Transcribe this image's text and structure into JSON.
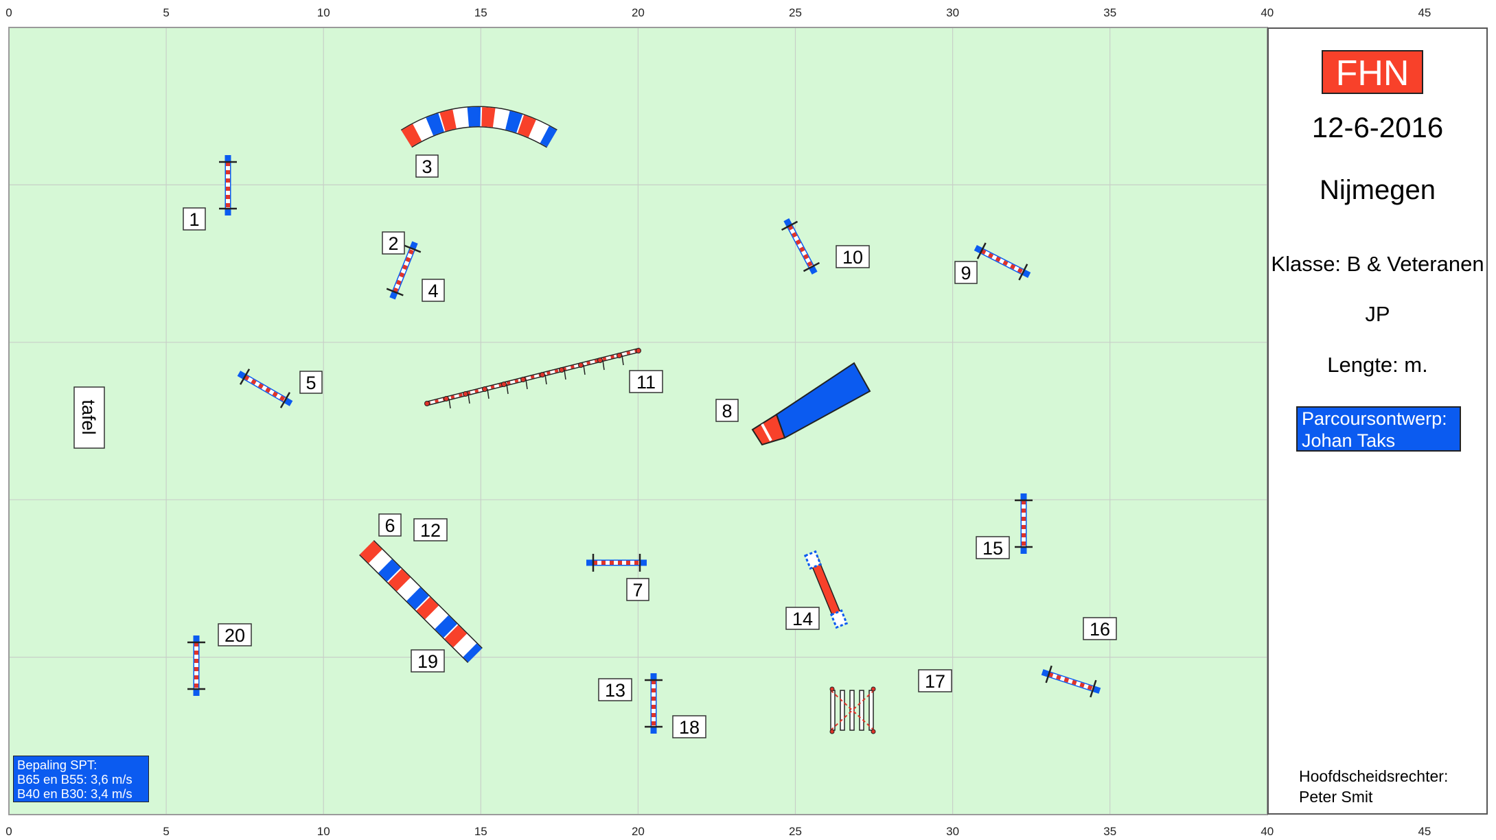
{
  "axis": {
    "ticks": [
      "0",
      "5",
      "10",
      "15",
      "20",
      "25",
      "30",
      "35",
      "40",
      "45"
    ]
  },
  "colors": {
    "field": "#d6f8d6",
    "grid": "#c8cfc8",
    "red": "#f8412a",
    "blue": "#0b5bf0",
    "pole_red": "#e0342a"
  },
  "obstacle_numbers": [
    "1",
    "2",
    "3",
    "4",
    "5",
    "6",
    "7",
    "8",
    "9",
    "10",
    "11",
    "12",
    "13",
    "14",
    "15",
    "16",
    "17",
    "18",
    "19",
    "20"
  ],
  "table_label": "tafel",
  "info": {
    "brand": "FHN",
    "date": "12-6-2016",
    "location": "Nijmegen",
    "class_line": "Klasse: B & Veteranen",
    "course_type": "JP",
    "length_line": "Lengte:  m.",
    "designer_title": "Parcoursontwerp:",
    "designer_name": "Johan Taks",
    "judge_title": "Hoofdscheidsrechter:",
    "judge_name": "Peter Smit"
  },
  "spt": {
    "title": "Bepaling SPT:",
    "line1": "B65 en B55: 3,6 m/s",
    "line2": "B40 en B30: 3,4 m/s"
  }
}
